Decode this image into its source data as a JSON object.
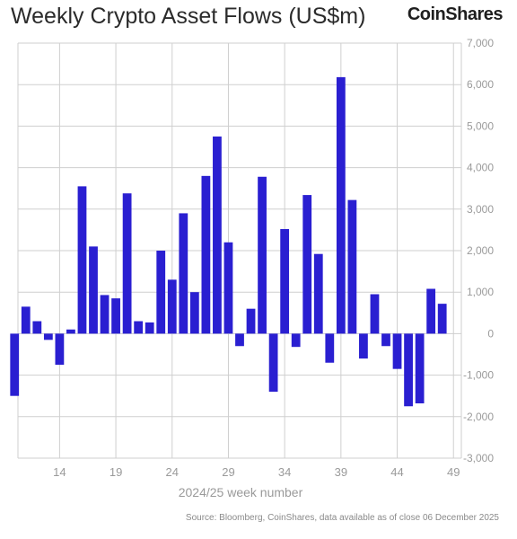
{
  "title": "Weekly Crypto Asset Flows (US$m)",
  "logo_text": "CoinShares",
  "source": "Source: Bloomberg, CoinShares, data available as of close 06 December 2025",
  "chart_data": {
    "type": "bar",
    "title": "Weekly Crypto Asset Flows (US$m)",
    "xlabel": "2024/25 week number",
    "ylabel": "",
    "x_ticks": [
      14,
      19,
      24,
      29,
      34,
      39,
      44,
      49
    ],
    "y_ticks": [
      -3000,
      -2000,
      -1000,
      0,
      1000,
      2000,
      3000,
      4000,
      5000,
      6000,
      7000
    ],
    "y_tick_labels": [
      "-3,000",
      "-2,000",
      "-1,000",
      "0",
      "1,000",
      "2,000",
      "3,000",
      "4,000",
      "5,000",
      "6,000",
      "7,000"
    ],
    "ylim": [
      -3000,
      7000
    ],
    "xlim": [
      10.3,
      49.7
    ],
    "grid": true,
    "bar_color": "#2a1fd1",
    "categories": [
      10,
      11,
      12,
      13,
      14,
      15,
      16,
      17,
      18,
      19,
      20,
      21,
      22,
      23,
      24,
      25,
      26,
      27,
      28,
      29,
      30,
      31,
      32,
      33,
      34,
      35,
      36,
      37,
      38,
      39,
      40,
      41,
      42,
      43,
      44,
      45,
      46,
      47,
      48,
      49
    ],
    "values": [
      -1500,
      650,
      300,
      -150,
      -750,
      100,
      3550,
      2100,
      930,
      850,
      3380,
      300,
      270,
      2000,
      1300,
      2900,
      1000,
      3800,
      4750,
      2200,
      -300,
      600,
      3780,
      -1400,
      2520,
      -320,
      3340,
      1920,
      -700,
      6180,
      3220,
      -600,
      950,
      -300,
      -850,
      -1750,
      -1680,
      1080,
      720,
      0
    ]
  }
}
